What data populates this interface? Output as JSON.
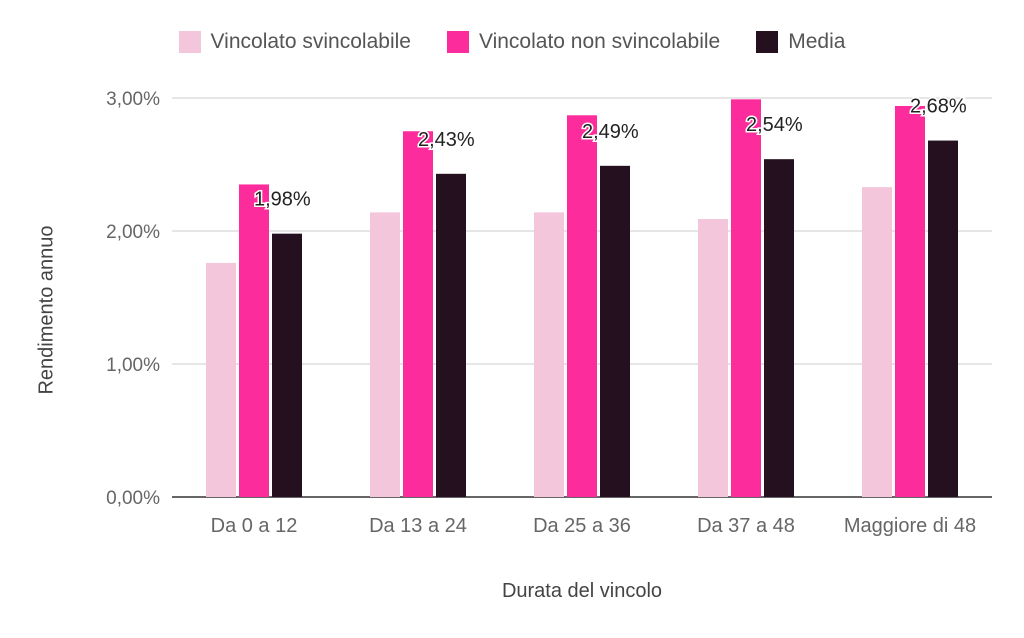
{
  "chart_data": {
    "type": "bar",
    "title": "",
    "xlabel": "Durata del vincolo",
    "ylabel": "Rendimento annuo",
    "categories": [
      "Da 0 a 12",
      "Da 13 a 24",
      "Da 25 a 36",
      "Da 37 a 48",
      "Maggiore di 48"
    ],
    "series": [
      {
        "name": "Vincolato svincolabile",
        "color": "#f4c6dc",
        "values": [
          1.76,
          2.14,
          2.14,
          2.09,
          2.33
        ]
      },
      {
        "name": "Vincolato non svincolabile",
        "color": "#fc2c9c",
        "values": [
          2.35,
          2.75,
          2.87,
          2.99,
          2.94
        ]
      },
      {
        "name": "Media",
        "color": "#24101f",
        "values": [
          1.98,
          2.43,
          2.49,
          2.54,
          2.68
        ]
      }
    ],
    "data_labels": [
      "1,98%",
      "2,43%",
      "2,49%",
      "2,54%",
      "2,68%"
    ],
    "yticks": [
      0,
      1,
      2,
      3
    ],
    "ytick_labels": [
      "0,00%",
      "1,00%",
      "2,00%",
      "3,00%"
    ],
    "ylim": [
      0,
      3
    ],
    "grid": true,
    "legend_position": "top"
  }
}
